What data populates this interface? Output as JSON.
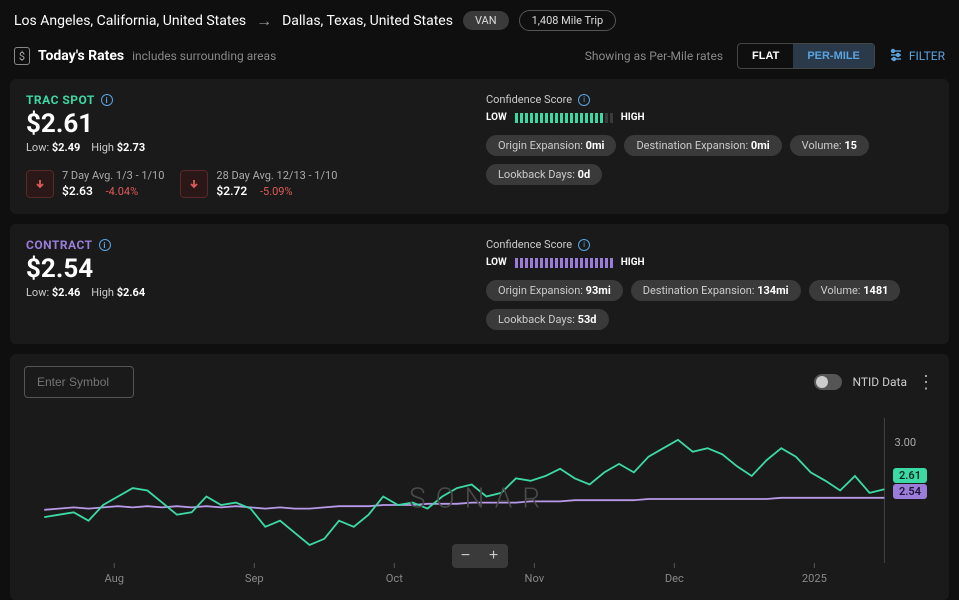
{
  "route": {
    "origin": "Los Angeles, California, United States",
    "destination": "Dallas, Texas, United States",
    "equipment": "VAN",
    "distance": "1,408 Mile Trip"
  },
  "subheader": {
    "title": "Today's Rates",
    "subtitle": "includes surrounding areas",
    "showing_as": "Showing as Per-Mile rates",
    "toggle_flat": "FLAT",
    "toggle_permile": "PER-MILE",
    "filter": "FILTER"
  },
  "trac_spot": {
    "title": "TRAC SPOT",
    "price": "$2.61",
    "low_label": "Low:",
    "low": "$2.49",
    "high_label": "High",
    "high": "$2.73",
    "avg7_label": "7 Day Avg. 1/3 - 1/10",
    "avg7_value": "$2.63",
    "avg7_pct": "-4.04%",
    "avg28_label": "28 Day Avg. 12/13 - 1/10",
    "avg28_value": "$2.72",
    "avg28_pct": "-5.09%",
    "conf_label": "Confidence Score",
    "conf_low": "LOW",
    "conf_high": "HIGH",
    "conf_filled": 18,
    "conf_total": 20,
    "chips": {
      "origin_exp_label": "Origin Expansion:",
      "origin_exp": "0mi",
      "dest_exp_label": "Destination Expansion:",
      "dest_exp": "0mi",
      "volume_label": "Volume:",
      "volume": "15",
      "lookback_label": "Lookback Days:",
      "lookback": "0d"
    }
  },
  "contract": {
    "title": "CONTRACT",
    "price": "$2.54",
    "low_label": "Low:",
    "low": "$2.46",
    "high_label": "High",
    "high": "$2.64",
    "conf_label": "Confidence Score",
    "conf_low": "LOW",
    "conf_high": "HIGH",
    "conf_filled": 20,
    "conf_total": 20,
    "chips": {
      "origin_exp_label": "Origin Expansion:",
      "origin_exp": "93mi",
      "dest_exp_label": "Destination Expansion:",
      "dest_exp": "134mi",
      "volume_label": "Volume:",
      "volume": "1481",
      "lookback_label": "Lookback Days:",
      "lookback": "53d"
    }
  },
  "chart": {
    "symbol_placeholder": "Enter Symbol",
    "ntid": "NTID Data",
    "watermark": "SONAR",
    "y_label": "3.00",
    "ylim": [
      2.0,
      3.2
    ],
    "x_labels": [
      "Aug",
      "Sep",
      "Oct",
      "Nov",
      "Dec",
      "2025"
    ],
    "trac_spot_color": "#3dd9a4",
    "contract_color": "#b89ae8",
    "trac_spot_tag": "2.61",
    "contract_tag": "2.54",
    "trac_spot_series": [
      2.38,
      2.4,
      2.42,
      2.35,
      2.48,
      2.55,
      2.62,
      2.6,
      2.5,
      2.4,
      2.42,
      2.55,
      2.48,
      2.5,
      2.45,
      2.3,
      2.35,
      2.25,
      2.15,
      2.2,
      2.35,
      2.3,
      2.4,
      2.55,
      2.48,
      2.5,
      2.45,
      2.55,
      2.62,
      2.65,
      2.55,
      2.58,
      2.7,
      2.68,
      2.72,
      2.78,
      2.7,
      2.65,
      2.75,
      2.82,
      2.75,
      2.88,
      2.95,
      3.02,
      2.92,
      2.95,
      2.9,
      2.8,
      2.72,
      2.85,
      2.95,
      2.88,
      2.75,
      2.68,
      2.6,
      2.72,
      2.58,
      2.61
    ],
    "contract_series": [
      2.44,
      2.45,
      2.46,
      2.45,
      2.46,
      2.47,
      2.46,
      2.47,
      2.46,
      2.47,
      2.46,
      2.47,
      2.46,
      2.47,
      2.46,
      2.45,
      2.46,
      2.45,
      2.45,
      2.46,
      2.47,
      2.47,
      2.47,
      2.48,
      2.48,
      2.48,
      2.49,
      2.49,
      2.49,
      2.5,
      2.5,
      2.5,
      2.5,
      2.51,
      2.51,
      2.51,
      2.52,
      2.52,
      2.52,
      2.52,
      2.52,
      2.53,
      2.53,
      2.53,
      2.53,
      2.53,
      2.53,
      2.53,
      2.53,
      2.53,
      2.54,
      2.54,
      2.54,
      2.54,
      2.54,
      2.54,
      2.54,
      2.54
    ]
  }
}
